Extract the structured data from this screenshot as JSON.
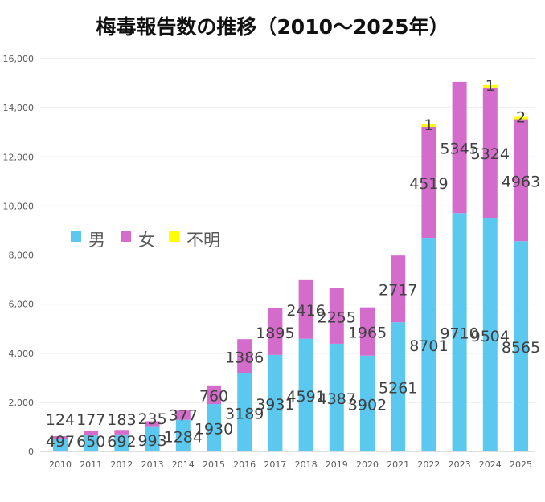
{
  "chart_data": {
    "type": "bar",
    "stacked": true,
    "title": "梅毒報告数の推移（2010～2025年）",
    "categories": [
      "2010",
      "2011",
      "2012",
      "2013",
      "2014",
      "2015",
      "2016",
      "2017",
      "2018",
      "2019",
      "2020",
      "2021",
      "2022",
      "2023",
      "2024",
      "2025"
    ],
    "series": [
      {
        "name": "男",
        "color": "#5BC8F0",
        "values": [
          497,
          650,
          692,
          993,
          1284,
          1930,
          3189,
          3931,
          4591,
          4387,
          3902,
          5261,
          8701,
          9710,
          9504,
          8565
        ]
      },
      {
        "name": "女",
        "color": "#D46CCB",
        "values": [
          124,
          177,
          183,
          235,
          377,
          760,
          1386,
          1895,
          2416,
          2255,
          1965,
          2717,
          4519,
          5345,
          5324,
          4963
        ]
      },
      {
        "name": "不明",
        "color": "#FFFF00",
        "values": [
          null,
          null,
          null,
          null,
          null,
          null,
          null,
          null,
          null,
          null,
          null,
          null,
          1,
          null,
          1,
          2
        ]
      }
    ],
    "ylim": [
      0,
      16000
    ],
    "yticks": [
      "0",
      "2,000",
      "4,000",
      "6,000",
      "8,000",
      "10,000",
      "12,000",
      "14,000",
      "16,000"
    ],
    "grid": true,
    "legend": "left-middle"
  }
}
